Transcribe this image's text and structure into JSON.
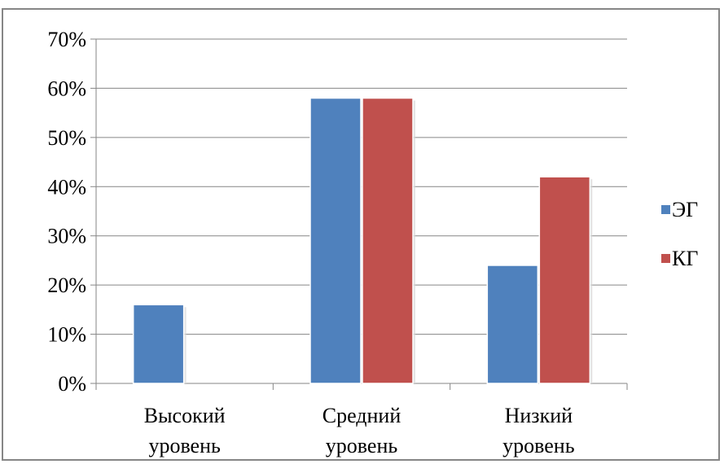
{
  "chart_data": {
    "type": "bar",
    "categories": [
      [
        "Высокий",
        "уровень"
      ],
      [
        "Средний",
        "уровень"
      ],
      [
        "Низкий",
        "уровень"
      ]
    ],
    "series": [
      {
        "name": "ЭГ",
        "color": "#4F81BD",
        "values": [
          16,
          58,
          24
        ]
      },
      {
        "name": "КГ",
        "color": "#C0504D",
        "values": [
          0,
          58,
          42
        ]
      }
    ],
    "ylim": [
      0,
      70
    ],
    "yticks": [
      0,
      10,
      20,
      30,
      40,
      50,
      60,
      70
    ],
    "ytick_labels": [
      "0%",
      "10%",
      "20%",
      "30%",
      "40%",
      "50%",
      "60%",
      "70%"
    ],
    "grid": true,
    "legend_position": "right"
  }
}
